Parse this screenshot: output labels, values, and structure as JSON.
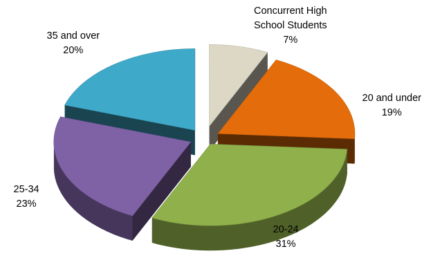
{
  "chart_data": {
    "type": "pie",
    "variant": "3d-exploded",
    "title": "",
    "legend": "none",
    "slices": [
      {
        "label": "Concurrent High School Students",
        "label_lines": [
          "Concurrent High",
          "School Students"
        ],
        "value": 7,
        "value_label": "7%",
        "color": "#dcd8c5"
      },
      {
        "label": "20 and under",
        "label_lines": [
          "20 and under"
        ],
        "value": 19,
        "value_label": "19%",
        "color": "#e46c0a"
      },
      {
        "label": "20-24",
        "label_lines": [
          "20-24"
        ],
        "value": 31,
        "value_label": "31%",
        "color": "#8fb04a"
      },
      {
        "label": "25-34",
        "label_lines": [
          "25-34"
        ],
        "value": 23,
        "value_label": "23%",
        "color": "#7f62a6"
      },
      {
        "label": "35 and over",
        "label_lines": [
          "35 and over"
        ],
        "value": 20,
        "value_label": "20%",
        "color": "#3fa9c9"
      }
    ]
  }
}
